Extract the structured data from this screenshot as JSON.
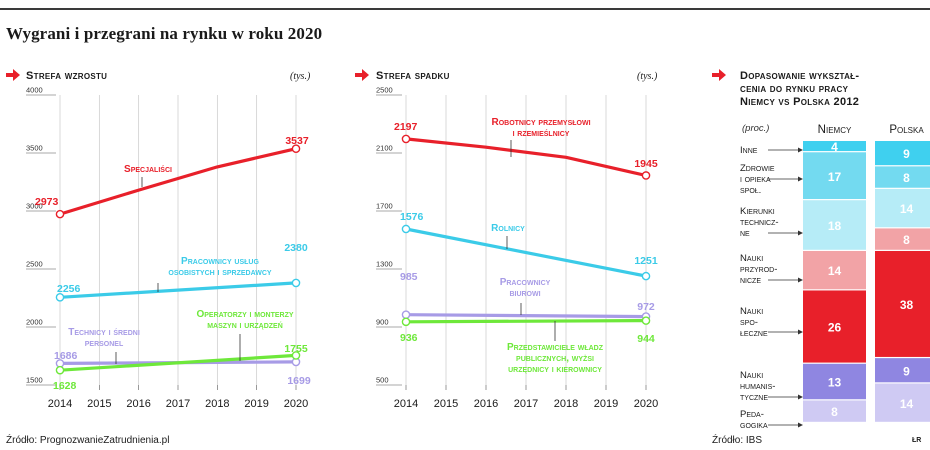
{
  "title": "Wygrani i przegrani na rynku w roku 2020",
  "panels": {
    "growth": {
      "title": "Strefa wzrostu",
      "unit": "(tys.)"
    },
    "decline": {
      "title": "Strefa spadku",
      "unit": "(tys.)"
    },
    "education": {
      "title_lines": [
        "Dopasowanie wykształ-",
        "cenia do rynku pracy",
        "Niemcy vs Polska 2012"
      ]
    }
  },
  "sources": {
    "left": "Źródło: PrognozwanieZatrudnienia.pl",
    "right": "Źródło: IBS",
    "credit": "ŁR"
  },
  "colors": {
    "red": "#e8202a",
    "cyan": "#3bcbe8",
    "green": "#6ee83a",
    "purple": "#a79be6",
    "grid": "#c8c8c8"
  },
  "chart_data": [
    {
      "type": "line",
      "x": [
        2014,
        2015,
        2016,
        2017,
        2018,
        2019,
        2020
      ],
      "xticks": [
        "2014",
        "2015",
        "2016",
        "2017",
        "2018",
        "2019",
        "2020"
      ],
      "yticks": [
        "1500",
        "2000",
        "2500",
        "3000",
        "3500",
        "4000"
      ],
      "ylim": [
        1500,
        4000
      ],
      "grid": true,
      "series": [
        {
          "name_lines": [
            "Specjaliści"
          ],
          "color": "red",
          "x": [
            2014,
            2016,
            2018,
            2020
          ],
          "values": [
            2973,
            3180,
            3380,
            3537
          ],
          "start_label": "2973",
          "end_label": "3537"
        },
        {
          "name_lines": [
            "Pracownicy usług",
            "osobistych i sprzedawcy"
          ],
          "color": "cyan",
          "x": [
            2014,
            2020
          ],
          "values": [
            2256,
            2380
          ],
          "start_label": "2256",
          "end_label": "2380"
        },
        {
          "name_lines": [
            "Technicy i średni",
            "personel"
          ],
          "color": "purple",
          "x": [
            2014,
            2020
          ],
          "values": [
            1686,
            1699
          ],
          "start_label": "1686",
          "end_label": "1699"
        },
        {
          "name_lines": [
            "Operatorzy i monterzy",
            "maszyn i urządzeń"
          ],
          "color": "green",
          "x": [
            2014,
            2020
          ],
          "values": [
            1628,
            1755
          ],
          "start_label": "1628",
          "end_label": "1755"
        }
      ]
    },
    {
      "type": "line",
      "x": [
        2014,
        2015,
        2016,
        2017,
        2018,
        2019,
        2020
      ],
      "xticks": [
        "2014",
        "2015",
        "2016",
        "2017",
        "2018",
        "2019",
        "2020"
      ],
      "yticks": [
        "500",
        "900",
        "1300",
        "1700",
        "2100",
        "2500"
      ],
      "ylim": [
        500,
        2500
      ],
      "grid": true,
      "series": [
        {
          "name_lines": [
            "Robotnicy przemysłowi",
            "i rzemieślnicy"
          ],
          "color": "red",
          "x": [
            2014,
            2016,
            2018,
            2020
          ],
          "values": [
            2197,
            2140,
            2070,
            1945
          ],
          "start_label": "2197",
          "end_label": "1945"
        },
        {
          "name_lines": [
            "Rolnicy"
          ],
          "color": "cyan",
          "x": [
            2014,
            2020
          ],
          "values": [
            1576,
            1251
          ],
          "start_label": "1576",
          "end_label": "1251"
        },
        {
          "name_lines": [
            "Pracownicy",
            "biurowi"
          ],
          "color": "purple",
          "x": [
            2014,
            2020
          ],
          "values": [
            985,
            972
          ],
          "start_label": "985",
          "end_label": "972"
        },
        {
          "name_lines": [
            "Przedstawiciele władz",
            "publicznych, wyżsi",
            "urzędnicy i kierownicy"
          ],
          "color": "green",
          "x": [
            2014,
            2020
          ],
          "values": [
            936,
            944
          ],
          "start_label": "936",
          "end_label": "944"
        }
      ]
    },
    {
      "type": "bar",
      "stacked": true,
      "unit_label": "(proc.)",
      "columns": [
        "Niemcy",
        "Polska"
      ],
      "categories": [
        {
          "label_lines": [
            "Inne"
          ],
          "color": "#3fd0ef",
          "values": [
            4,
            9
          ]
        },
        {
          "label_lines": [
            "Zdrowie",
            "i opieka",
            "społ."
          ],
          "color": "#73daf0",
          "values": [
            17,
            8
          ]
        },
        {
          "label_lines": [
            "Kierunki",
            "technicz-",
            "ne"
          ],
          "color": "#b6ecf7",
          "values": [
            18,
            14
          ]
        },
        {
          "label_lines": [
            "Nauki",
            "przyrod-",
            "nicze"
          ],
          "color": "#f2a3a6",
          "values": [
            14,
            8
          ]
        },
        {
          "label_lines": [
            "Nauki",
            "spo-",
            "łeczne"
          ],
          "color": "#e8202a",
          "values": [
            26,
            38
          ]
        },
        {
          "label_lines": [
            "Nauki",
            "humanis-",
            "tyczne"
          ],
          "color": "#8f86e1",
          "values": [
            13,
            9
          ]
        },
        {
          "label_lines": [
            "Peda-",
            "gogika"
          ],
          "color": "#cfcaf3",
          "values": [
            8,
            14
          ]
        }
      ]
    }
  ]
}
